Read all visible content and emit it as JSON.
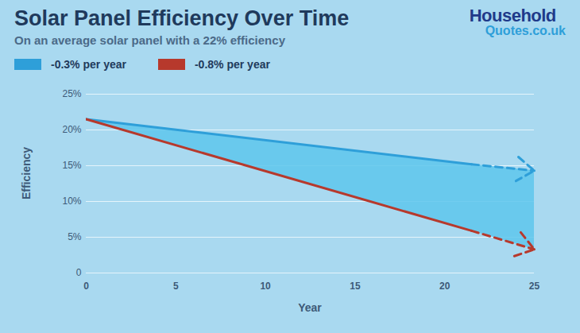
{
  "chart_data": {
    "type": "line",
    "title": "Solar Panel Efficiency Over Time",
    "subtitle": "On an average solar panel with a 22% efficiency",
    "logo": [
      "Household",
      "Quotes.co.uk"
    ],
    "x_label": "Year",
    "y_label": "Efficiency",
    "x": [
      0,
      21.5,
      25
    ],
    "series": [
      {
        "name": "-0.3% per year",
        "color": "#2e9fd9",
        "values": [
          21.5,
          15.2,
          14.3
        ],
        "line_style": "dashed_end",
        "marker": "arrow"
      },
      {
        "name": "-0.8% per year",
        "color": "#b7392c",
        "values": [
          21.5,
          5.9,
          3.3
        ],
        "line_style": "dashed_end",
        "marker": "arrow"
      }
    ],
    "xlim": [
      0,
      25
    ],
    "xticks": [
      0,
      5,
      10,
      15,
      20,
      25
    ],
    "ylim": [
      0,
      25
    ],
    "yticks": [
      0,
      {
        "value": 5,
        "label": "5%"
      },
      {
        "value": 10,
        "label": "10%"
      },
      {
        "value": 15,
        "label": "15%"
      },
      {
        "value": 20,
        "label": "20%"
      },
      {
        "value": 25,
        "label": "25%"
      }
    ],
    "grid": true,
    "legend": "top-left"
  }
}
